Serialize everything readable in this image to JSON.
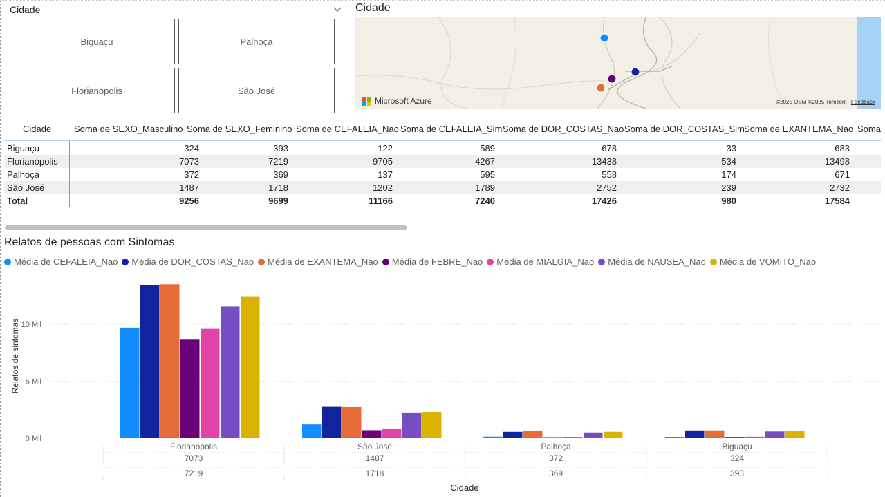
{
  "slicer": {
    "title": "Cidade",
    "tiles": [
      "Biguaçu",
      "Palhoça",
      "Florianópolis",
      "São José"
    ]
  },
  "map": {
    "title": "Cidade",
    "brand": "Microsoft Azure",
    "attribution": "©2025 OSM  ©2025 TomTom",
    "feedback": "Feedback"
  },
  "table": {
    "headers": [
      "Cidade",
      "Soma de SEXO_Masculino",
      "Soma de SEXO_Feminino",
      "Soma de CEFALEIA_Nao",
      "Soma de CEFALEIA_Sim",
      "Soma de DOR_COSTAS_Nao",
      "Soma de DOR_COSTAS_Sim",
      "Soma de EXANTEMA_Nao",
      "Soma"
    ],
    "rows": [
      {
        "city": "Biguaçu",
        "values": [
          "324",
          "393",
          "122",
          "589",
          "678",
          "33",
          "683"
        ]
      },
      {
        "city": "Florianópolis",
        "values": [
          "7073",
          "7219",
          "9705",
          "4267",
          "13438",
          "534",
          "13498"
        ]
      },
      {
        "city": "Palhoça",
        "values": [
          "372",
          "369",
          "137",
          "595",
          "558",
          "174",
          "671"
        ]
      },
      {
        "city": "São José",
        "values": [
          "1487",
          "1718",
          "1202",
          "1789",
          "2752",
          "239",
          "2732"
        ]
      }
    ],
    "total": {
      "city": "Total",
      "values": [
        "9256",
        "9699",
        "11166",
        "7240",
        "17426",
        "980",
        "17584"
      ]
    }
  },
  "chart_title": "Relatos de pessoas com Sintomas",
  "chart_data": {
    "type": "bar",
    "title": "Relatos de pessoas com Sintomas",
    "xlabel": "Cidade",
    "ylabel": "Relatos de sintomas",
    "categories": [
      "Florianópolis",
      "São José",
      "Palhoça",
      "Biguaçu"
    ],
    "category_sublabels": [
      [
        "7073",
        "7219"
      ],
      [
        "1487",
        "1718"
      ],
      [
        "372",
        "369"
      ],
      [
        "324",
        "393"
      ]
    ],
    "yticks": [
      "0 Mil",
      "5 Mil",
      "10 Mil"
    ],
    "ylim": [
      0,
      14000
    ],
    "legend_position": "top-left",
    "grid": true,
    "series": [
      {
        "name": "Média de CEFALEIA_Nao",
        "color": "#118DFF",
        "values": [
          9705,
          1202,
          137,
          122
        ]
      },
      {
        "name": "Média de DOR_COSTAS_Nao",
        "color": "#12239E",
        "values": [
          13438,
          2752,
          558,
          678
        ]
      },
      {
        "name": "Média de EXANTEMA_Nao",
        "color": "#E66C37",
        "values": [
          13498,
          2732,
          671,
          683
        ]
      },
      {
        "name": "Média de FEBRE_Nao",
        "color": "#6B007B",
        "values": [
          8650,
          700,
          90,
          110
        ]
      },
      {
        "name": "Média de MIALGIA_Nao",
        "color": "#E044A7",
        "values": [
          9600,
          850,
          120,
          130
        ]
      },
      {
        "name": "Média de NAUSEA_Nao",
        "color": "#744EC2",
        "values": [
          11550,
          2250,
          500,
          590
        ]
      },
      {
        "name": "Média de VOMITO_Nao",
        "color": "#D9B300",
        "values": [
          12450,
          2300,
          560,
          630
        ]
      }
    ]
  },
  "map_points": [
    {
      "color": "#118DFF"
    },
    {
      "color": "#12239E"
    },
    {
      "color": "#6B007B"
    },
    {
      "color": "#E66C37"
    }
  ]
}
